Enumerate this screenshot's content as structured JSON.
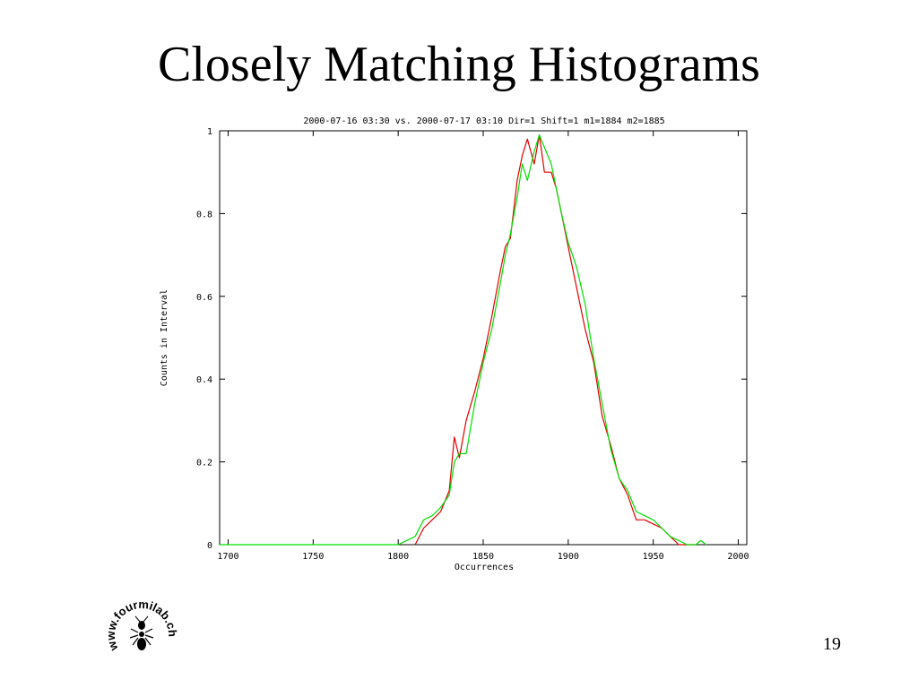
{
  "slide": {
    "title": "Closely Matching Histograms",
    "page_number": "19",
    "logo_text": "www.fourmilab.ch"
  },
  "chart_data": {
    "type": "line",
    "title": "2000-07-16 03:30 vs. 2000-07-17 03:10 Dir=1 Shift=1 m1=1884 m2=1885",
    "xlabel": "Occurrences",
    "ylabel": "Counts in Interval",
    "xlim": [
      1695,
      2005
    ],
    "ylim": [
      0,
      1
    ],
    "x_ticks": [
      1700,
      1750,
      1800,
      1850,
      1900,
      1950,
      2000
    ],
    "y_ticks": [
      0,
      0.2,
      0.4,
      0.6,
      0.8,
      1
    ],
    "y_tick_labels": [
      "0",
      "0.2",
      "0.4",
      "0.6",
      "0.8",
      "1"
    ],
    "grid": false,
    "series": [
      {
        "color": "#e00000",
        "x": [
          1810,
          1815,
          1820,
          1825,
          1830,
          1833,
          1836,
          1840,
          1845,
          1850,
          1855,
          1860,
          1863,
          1866,
          1870,
          1873,
          1876,
          1880,
          1883,
          1886,
          1890,
          1893,
          1896,
          1900,
          1905,
          1910,
          1915,
          1920,
          1925,
          1930,
          1935,
          1940,
          1945,
          1950,
          1955,
          1960,
          1965,
          1970,
          1975
        ],
        "values": [
          0.0,
          0.04,
          0.06,
          0.08,
          0.13,
          0.26,
          0.21,
          0.3,
          0.37,
          0.45,
          0.55,
          0.66,
          0.72,
          0.74,
          0.88,
          0.94,
          0.98,
          0.92,
          0.99,
          0.9,
          0.9,
          0.86,
          0.8,
          0.72,
          0.62,
          0.52,
          0.44,
          0.31,
          0.24,
          0.16,
          0.12,
          0.06,
          0.06,
          0.05,
          0.04,
          0.02,
          0.0,
          0.0,
          0.0
        ]
      },
      {
        "color": "#00e000",
        "x": [
          1695,
          1800,
          1805,
          1810,
          1815,
          1820,
          1825,
          1830,
          1833,
          1836,
          1840,
          1845,
          1850,
          1855,
          1860,
          1863,
          1866,
          1870,
          1873,
          1876,
          1880,
          1883,
          1886,
          1890,
          1893,
          1896,
          1900,
          1905,
          1910,
          1915,
          1920,
          1925,
          1930,
          1935,
          1940,
          1945,
          1950,
          1955,
          1960,
          1965,
          1970,
          1975,
          1978,
          1981
        ],
        "values": [
          0.0,
          0.0,
          0.01,
          0.02,
          0.06,
          0.07,
          0.09,
          0.12,
          0.2,
          0.22,
          0.22,
          0.34,
          0.44,
          0.52,
          0.63,
          0.7,
          0.75,
          0.84,
          0.92,
          0.88,
          0.95,
          0.99,
          0.96,
          0.92,
          0.86,
          0.8,
          0.73,
          0.67,
          0.58,
          0.45,
          0.34,
          0.23,
          0.16,
          0.13,
          0.08,
          0.07,
          0.06,
          0.04,
          0.02,
          0.01,
          0.0,
          0.0,
          0.01,
          0.0
        ]
      }
    ]
  }
}
